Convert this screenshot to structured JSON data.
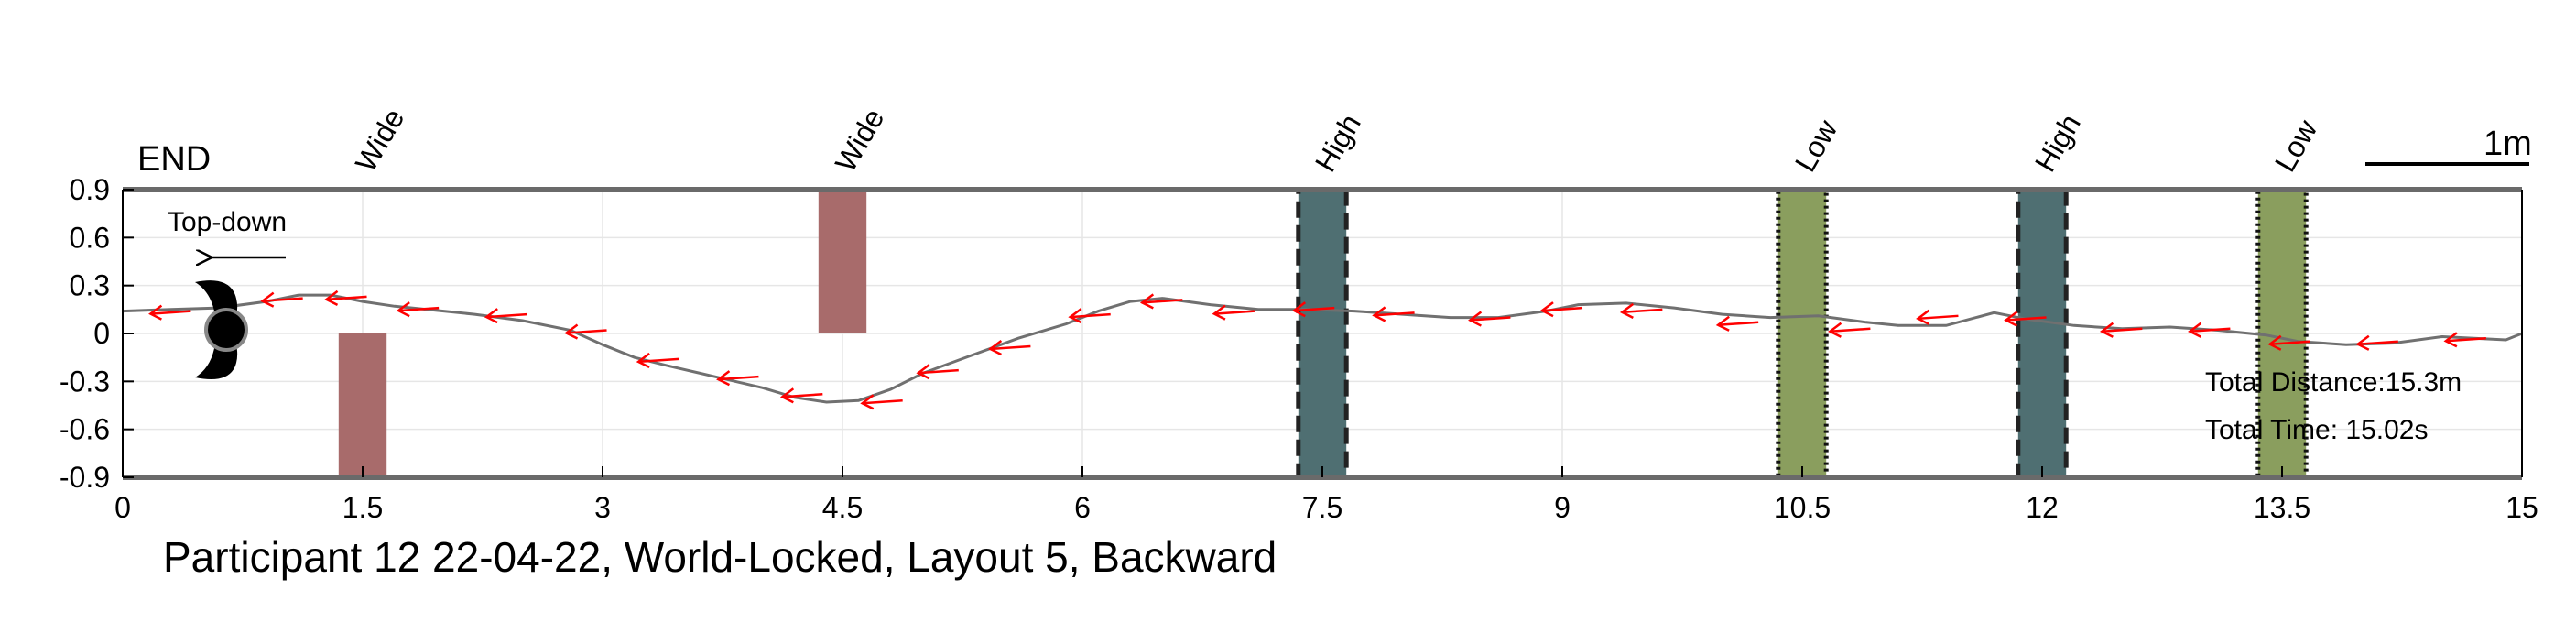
{
  "chart_data": {
    "type": "line",
    "title": "Participant 12 22-04-22, World-Locked, Layout 5, Backward",
    "xlim": [
      0,
      15
    ],
    "ylim": [
      -0.9,
      0.9
    ],
    "x_ticks": [
      "0",
      "1.5",
      "3",
      "4.5",
      "6",
      "7.5",
      "9",
      "10.5",
      "12",
      "13.5",
      "15"
    ],
    "x_tick_values": [
      0,
      1.5,
      3,
      4.5,
      6,
      7.5,
      9,
      10.5,
      12,
      13.5,
      15
    ],
    "y_ticks": [
      "0.9",
      "0.6",
      "0.3",
      "0",
      "-0.3",
      "-0.6",
      "-0.9"
    ],
    "y_tick_values": [
      0.9,
      0.6,
      0.3,
      0,
      -0.3,
      -0.6,
      -0.9
    ],
    "grid": true,
    "end_label": "END",
    "scale_bar_label": "1m",
    "top_down_label": "Top-down",
    "annotations": [
      "Total Distance:15.3m",
      "Total Time: 15.02s"
    ],
    "obstacles": [
      {
        "label": "Wide",
        "type": "wide",
        "x": [
          1.35,
          1.65
        ],
        "y": [
          -0.9,
          0.0
        ],
        "color": "#a86b6b"
      },
      {
        "label": "Wide",
        "type": "wide",
        "x": [
          4.35,
          4.65
        ],
        "y": [
          0.0,
          0.9
        ],
        "color": "#a86b6b"
      },
      {
        "label": "High",
        "type": "high",
        "x": [
          7.35,
          7.65
        ],
        "y": [
          -0.9,
          0.9
        ],
        "color": "#4f6f72"
      },
      {
        "label": "Low",
        "type": "low",
        "x": [
          10.35,
          10.65
        ],
        "y": [
          -0.9,
          0.9
        ],
        "color": "#8a9e5e"
      },
      {
        "label": "High",
        "type": "high",
        "x": [
          11.85,
          12.15
        ],
        "y": [
          -0.9,
          0.9
        ],
        "color": "#4f6f72"
      },
      {
        "label": "Low",
        "type": "low",
        "x": [
          13.35,
          13.65
        ],
        "y": [
          -0.9,
          0.9
        ],
        "color": "#8a9e5e"
      }
    ],
    "series": [
      {
        "x": [
          0,
          0.3,
          0.6,
          0.9,
          1.1,
          1.3,
          1.5,
          1.7,
          1.9,
          2.2,
          2.5,
          2.8,
          3.0,
          3.2,
          3.4,
          3.7,
          4.0,
          4.2,
          4.4,
          4.6,
          4.8,
          5.0,
          5.3,
          5.6,
          5.9,
          6.1,
          6.3,
          6.5,
          6.8,
          7.1,
          7.4,
          7.7,
          8.0,
          8.3,
          8.6,
          8.9,
          9.1,
          9.4,
          9.7,
          10.0,
          10.3,
          10.6,
          10.9,
          11.1,
          11.4,
          11.7,
          11.9,
          12.2,
          12.5,
          12.8,
          13.1,
          13.4,
          13.6,
          13.9,
          14.2,
          14.5,
          14.7,
          14.9,
          15.0
        ],
        "y": [
          0.14,
          0.15,
          0.16,
          0.2,
          0.24,
          0.24,
          0.2,
          0.17,
          0.15,
          0.12,
          0.08,
          0.02,
          -0.07,
          -0.15,
          -0.2,
          -0.27,
          -0.34,
          -0.4,
          -0.43,
          -0.42,
          -0.35,
          -0.25,
          -0.14,
          -0.03,
          0.06,
          0.14,
          0.2,
          0.22,
          0.18,
          0.15,
          0.15,
          0.14,
          0.12,
          0.1,
          0.1,
          0.14,
          0.18,
          0.19,
          0.16,
          0.12,
          0.1,
          0.11,
          0.07,
          0.05,
          0.05,
          0.13,
          0.09,
          0.05,
          0.03,
          0.04,
          0.02,
          -0.01,
          -0.05,
          -0.07,
          -0.06,
          -0.02,
          -0.03,
          -0.04,
          0.0
        ]
      }
    ],
    "arrows": [
      {
        "x": 0.3,
        "y": 0.14
      },
      {
        "x": 1.0,
        "y": 0.22
      },
      {
        "x": 1.4,
        "y": 0.23
      },
      {
        "x": 1.85,
        "y": 0.16
      },
      {
        "x": 2.4,
        "y": 0.12
      },
      {
        "x": 2.9,
        "y": 0.02
      },
      {
        "x": 3.35,
        "y": -0.16
      },
      {
        "x": 3.85,
        "y": -0.27
      },
      {
        "x": 4.25,
        "y": -0.38
      },
      {
        "x": 4.75,
        "y": -0.42
      },
      {
        "x": 5.1,
        "y": -0.23
      },
      {
        "x": 5.55,
        "y": -0.08
      },
      {
        "x": 6.05,
        "y": 0.12
      },
      {
        "x": 6.5,
        "y": 0.21
      },
      {
        "x": 6.95,
        "y": 0.14
      },
      {
        "x": 7.45,
        "y": 0.16
      },
      {
        "x": 7.95,
        "y": 0.13
      },
      {
        "x": 8.55,
        "y": 0.1
      },
      {
        "x": 9.0,
        "y": 0.16
      },
      {
        "x": 9.5,
        "y": 0.15
      },
      {
        "x": 10.1,
        "y": 0.07
      },
      {
        "x": 10.8,
        "y": 0.03
      },
      {
        "x": 11.35,
        "y": 0.11
      },
      {
        "x": 11.9,
        "y": 0.1
      },
      {
        "x": 12.5,
        "y": 0.03
      },
      {
        "x": 13.05,
        "y": 0.03
      },
      {
        "x": 13.55,
        "y": -0.05
      },
      {
        "x": 14.1,
        "y": -0.05
      },
      {
        "x": 14.65,
        "y": -0.03
      }
    ]
  }
}
